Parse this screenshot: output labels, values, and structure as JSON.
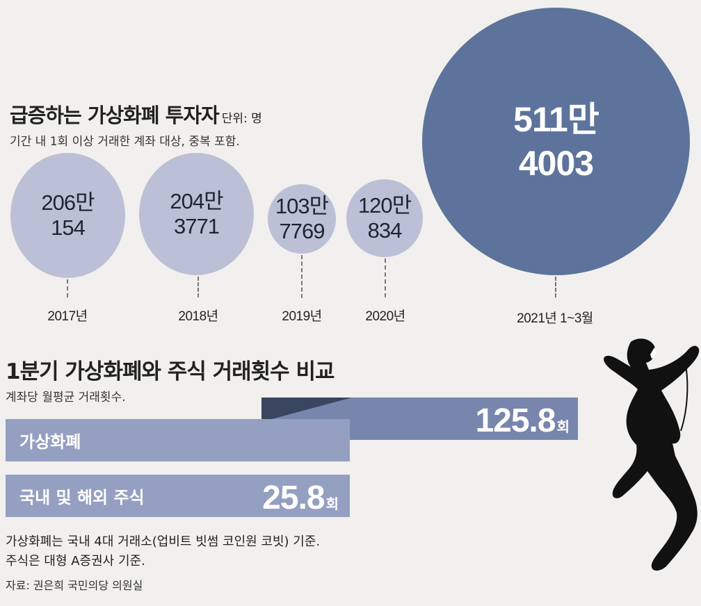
{
  "section1": {
    "title": "급증하는 가상화폐 투자자",
    "unit": "단위: 명",
    "subtitle": "기간 내 1회 이상 거래한 계좌 대상, 중복 포함."
  },
  "section2": {
    "title": "1분기 가상화폐와 주식 거래횟수 비교",
    "subtitle": "계좌당 월평균 거래횟수."
  },
  "notes": {
    "line1": "가상화폐는 국내 4대 거래소(업비트 빗썸 코인원 코빗) 기준.",
    "line2": "주식은 대형 A증권사 기준.",
    "source": "자료: 권은희 국민의당 의원실"
  },
  "colors": {
    "background": "#f1f0ee",
    "small_bubble": "#bcc0d6",
    "big_bubble": "#5d739b",
    "crypto_bar": "#7885ad",
    "label_bar": "#959fc2"
  },
  "icons": [
    "climber-silhouette-icon"
  ],
  "chart_data": [
    {
      "type": "bubble",
      "categories": [
        "2017년",
        "2018년",
        "2019년",
        "2020년",
        "2021년 1~3월"
      ],
      "values": [
        2060154,
        2043771,
        1037769,
        1200834,
        5114003
      ],
      "labels": [
        {
          "top": "206만",
          "bottom": "154"
        },
        {
          "top": "204만",
          "bottom": "3771"
        },
        {
          "top": "103만",
          "bottom": "7769"
        },
        {
          "top": "120만",
          "bottom": "834"
        },
        {
          "top": "511만",
          "bottom": "4003"
        }
      ]
    },
    {
      "type": "bar",
      "orientation": "horizontal",
      "categories": [
        "가상화폐",
        "국내 및 해외 주식"
      ],
      "values": [
        125.8,
        25.8
      ],
      "value_labels": [
        "125.8",
        "25.8"
      ],
      "unit": "회"
    }
  ]
}
